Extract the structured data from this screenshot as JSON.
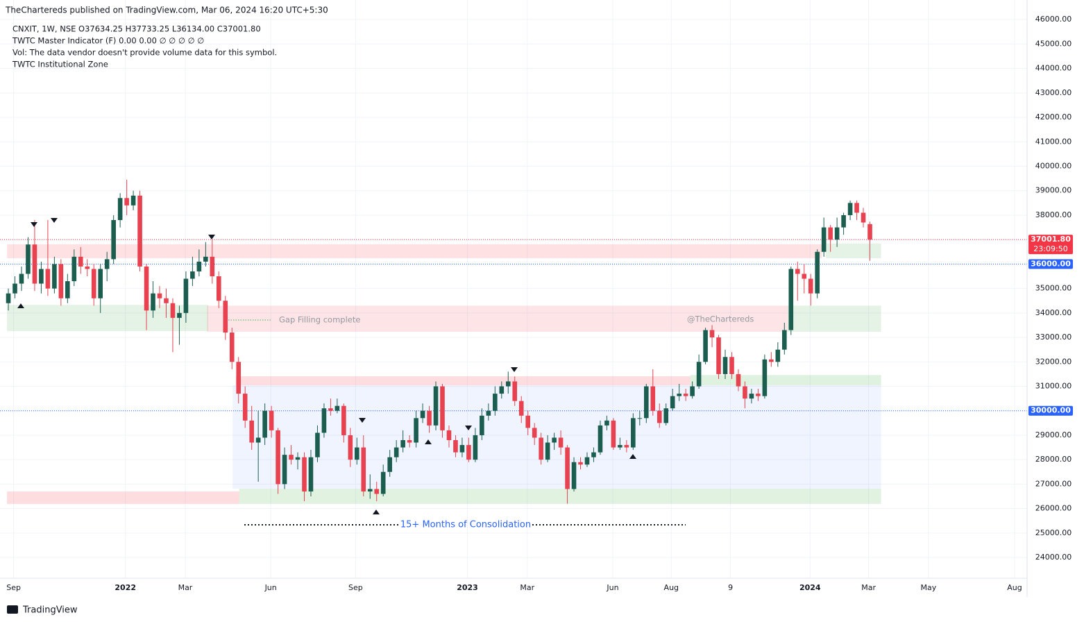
{
  "header": {
    "publisher": "TheChartereds published on TradingView.com, Mar 06, 2024 16:20 UTC+5:30"
  },
  "legend": [
    "CNXIT, 1W, NSE  O37634.25  H37733.25  L36134.00  C37001.80",
    "TWTC Master Indicator (F)  0.00  0.00  ∅  ∅  ∅  ∅  ∅",
    "Vol: The data vendor doesn't provide volume data for this symbol.",
    "TWTC Institutional Zone"
  ],
  "annotations": {
    "gap": "Gap Filling complete",
    "watermark": "@TheChartereds",
    "consolidation": "15+ Months of Consolidation"
  },
  "footer": "TradingView",
  "chart_data": {
    "type": "candlestick",
    "up_color": "#1b5e4f",
    "down_color": "#e8414f",
    "ylim": [
      23150,
      46800
    ],
    "yticks": [
      {
        "value": 24000,
        "label": "24000.00"
      },
      {
        "value": 25000,
        "label": "25000.00"
      },
      {
        "value": 26000,
        "label": "26000.00"
      },
      {
        "value": 27000,
        "label": "27000.00"
      },
      {
        "value": 28000,
        "label": "28000.00"
      },
      {
        "value": 29000,
        "label": "29000.00"
      },
      {
        "value": 30000,
        "label": "30000.00"
      },
      {
        "value": 31000,
        "label": "31000.00"
      },
      {
        "value": 32000,
        "label": "32000.00"
      },
      {
        "value": 33000,
        "label": "33000.00"
      },
      {
        "value": 34000,
        "label": "34000.00"
      },
      {
        "value": 35000,
        "label": "35000.00"
      },
      {
        "value": 36000,
        "label": "36000.00"
      },
      {
        "value": 37000,
        "label": "37000.00"
      },
      {
        "value": 38000,
        "label": "38000.00"
      },
      {
        "value": 39000,
        "label": "39000.00"
      },
      {
        "value": 40000,
        "label": "40000.00"
      },
      {
        "value": 41000,
        "label": "41000.00"
      },
      {
        "value": 42000,
        "label": "42000.00"
      },
      {
        "value": 43000,
        "label": "43000.00"
      },
      {
        "value": 44000,
        "label": "44000.00"
      },
      {
        "value": 45000,
        "label": "45000.00"
      },
      {
        "value": 46000,
        "label": "46000.00"
      }
    ],
    "xlim": [
      -1.27,
      154.9
    ],
    "xticks": [
      {
        "value": 0.8,
        "label": "Sep"
      },
      {
        "value": 17.8,
        "label": "2022"
      },
      {
        "value": 26.9,
        "label": "Mar"
      },
      {
        "value": 39.9,
        "label": "Jun"
      },
      {
        "value": 52.8,
        "label": "Sep"
      },
      {
        "value": 69.8,
        "label": "2023"
      },
      {
        "value": 78.9,
        "label": "Mar"
      },
      {
        "value": 91.9,
        "label": "Jun"
      },
      {
        "value": 100.8,
        "label": "Aug"
      },
      {
        "value": 109.8,
        "label": "9"
      },
      {
        "value": 121.9,
        "label": "2024"
      },
      {
        "value": 130.8,
        "label": "Mar"
      },
      {
        "value": 139.9,
        "label": "May"
      },
      {
        "value": 153,
        "label": "Aug"
      }
    ],
    "grid": true,
    "ohlc": [
      [
        34400,
        35000,
        34100,
        34800
      ],
      [
        34800,
        35500,
        34600,
        35200
      ],
      [
        35200,
        35900,
        34900,
        35600
      ],
      [
        35600,
        37100,
        35400,
        36800
      ],
      [
        36800,
        37800,
        34900,
        35200
      ],
      [
        35200,
        36100,
        34800,
        35800
      ],
      [
        35800,
        37800,
        34700,
        35000
      ],
      [
        35000,
        36300,
        34800,
        36000
      ],
      [
        36000,
        36200,
        34300,
        34600
      ],
      [
        34600,
        35600,
        34400,
        35300
      ],
      [
        35300,
        36600,
        35100,
        36300
      ],
      [
        36300,
        36700,
        35600,
        35900
      ],
      [
        35900,
        36200,
        35500,
        35800
      ],
      [
        35800,
        36000,
        34300,
        34600
      ],
      [
        34600,
        36000,
        34000,
        35800
      ],
      [
        35800,
        36500,
        35300,
        36200
      ],
      [
        36200,
        38000,
        36000,
        37800
      ],
      [
        37800,
        38900,
        37500,
        38700
      ],
      [
        38700,
        39450,
        38000,
        38400
      ],
      [
        38400,
        39000,
        38200,
        38800
      ],
      [
        38800,
        39000,
        35700,
        35900
      ],
      [
        35900,
        36000,
        33300,
        34100
      ],
      [
        34100,
        35300,
        33800,
        34800
      ],
      [
        34800,
        35100,
        34200,
        34600
      ],
      [
        34600,
        35000,
        33800,
        34400
      ],
      [
        34400,
        34600,
        32400,
        33800
      ],
      [
        33800,
        34300,
        32700,
        34000
      ],
      [
        34000,
        35700,
        33600,
        35400
      ],
      [
        35400,
        36300,
        35100,
        35700
      ],
      [
        35700,
        36600,
        35500,
        36100
      ],
      [
        36100,
        36900,
        35900,
        36300
      ],
      [
        36300,
        37000,
        35200,
        35500
      ],
      [
        35500,
        35700,
        34200,
        34500
      ],
      [
        34500,
        34700,
        32900,
        33200
      ],
      [
        33200,
        33400,
        31700,
        32000
      ],
      [
        32000,
        32200,
        30300,
        30700
      ],
      [
        30700,
        31000,
        29300,
        29600
      ],
      [
        29600,
        30200,
        28400,
        28700
      ],
      [
        28700,
        30000,
        27100,
        28900
      ],
      [
        28900,
        30300,
        28600,
        30000
      ],
      [
        30000,
        30200,
        28900,
        29200
      ],
      [
        29200,
        29300,
        26600,
        27000
      ],
      [
        27000,
        28500,
        26800,
        28200
      ],
      [
        28200,
        28600,
        27800,
        28000
      ],
      [
        28000,
        28300,
        27600,
        28100
      ],
      [
        28100,
        28300,
        26300,
        26700
      ],
      [
        26700,
        28400,
        26500,
        28100
      ],
      [
        28100,
        29400,
        27900,
        29100
      ],
      [
        29100,
        30300,
        28900,
        30100
      ],
      [
        30100,
        30500,
        29800,
        30000
      ],
      [
        30000,
        30500,
        29900,
        30200
      ],
      [
        30200,
        30300,
        28700,
        29000
      ],
      [
        29000,
        29300,
        27700,
        28000
      ],
      [
        28000,
        28900,
        27800,
        28500
      ],
      [
        28500,
        29000,
        26500,
        26700
      ],
      [
        26700,
        27400,
        26400,
        26800
      ],
      [
        26800,
        27100,
        26300,
        26600
      ],
      [
        26600,
        27800,
        26500,
        27500
      ],
      [
        27500,
        28400,
        27300,
        28100
      ],
      [
        28100,
        28800,
        27900,
        28500
      ],
      [
        28500,
        29200,
        28300,
        28800
      ],
      [
        28800,
        29000,
        28500,
        28700
      ],
      [
        28700,
        30000,
        28500,
        29700
      ],
      [
        29700,
        30300,
        29500,
        30000
      ],
      [
        30000,
        30200,
        29100,
        29400
      ],
      [
        29400,
        31200,
        29200,
        31000
      ],
      [
        31000,
        31100,
        28900,
        29200
      ],
      [
        29200,
        29400,
        28500,
        28800
      ],
      [
        28800,
        29000,
        28100,
        28300
      ],
      [
        28300,
        28900,
        28100,
        28600
      ],
      [
        28600,
        28900,
        27900,
        28000
      ],
      [
        28000,
        29300,
        27900,
        29000
      ],
      [
        29000,
        30100,
        28800,
        29800
      ],
      [
        29800,
        30300,
        29600,
        30000
      ],
      [
        30000,
        31000,
        29800,
        30700
      ],
      [
        30700,
        31200,
        30500,
        31000
      ],
      [
        31000,
        31600,
        30700,
        31200
      ],
      [
        31200,
        31400,
        30200,
        30400
      ],
      [
        30400,
        30600,
        29500,
        29800
      ],
      [
        29800,
        30000,
        29000,
        29300
      ],
      [
        29300,
        29500,
        28600,
        28900
      ],
      [
        28900,
        29100,
        27800,
        28000
      ],
      [
        28000,
        29000,
        27900,
        28700
      ],
      [
        28700,
        29100,
        28400,
        28900
      ],
      [
        28900,
        29200,
        28200,
        28500
      ],
      [
        28500,
        28600,
        26200,
        26800
      ],
      [
        26800,
        28100,
        26700,
        27900
      ],
      [
        27900,
        28100,
        27600,
        27800
      ],
      [
        27800,
        28300,
        27700,
        28100
      ],
      [
        28100,
        28500,
        27900,
        28300
      ],
      [
        28300,
        29600,
        28200,
        29400
      ],
      [
        29400,
        29800,
        29200,
        29600
      ],
      [
        29600,
        29700,
        28400,
        28500
      ],
      [
        28500,
        28900,
        28400,
        28600
      ],
      [
        28600,
        28800,
        28300,
        28500
      ],
      [
        28500,
        29900,
        28400,
        29700
      ],
      [
        29700,
        30000,
        29400,
        29700
      ],
      [
        29700,
        31100,
        29500,
        31000
      ],
      [
        31000,
        31700,
        29800,
        30000
      ],
      [
        30000,
        30300,
        29300,
        29500
      ],
      [
        29500,
        30300,
        29400,
        30100
      ],
      [
        30100,
        30900,
        30000,
        30600
      ],
      [
        30600,
        31100,
        30400,
        30700
      ],
      [
        30700,
        30900,
        30400,
        30600
      ],
      [
        30600,
        31200,
        30500,
        31000
      ],
      [
        31000,
        32300,
        30900,
        32000
      ],
      [
        32000,
        33400,
        31900,
        33300
      ],
      [
        33300,
        33500,
        32600,
        33000
      ],
      [
        33000,
        33100,
        31300,
        31500
      ],
      [
        31500,
        32500,
        31300,
        32200
      ],
      [
        32200,
        32400,
        31300,
        31500
      ],
      [
        31500,
        31700,
        30800,
        31000
      ],
      [
        31000,
        31200,
        30100,
        30500
      ],
      [
        30500,
        30900,
        30300,
        30700
      ],
      [
        30700,
        30900,
        30400,
        30600
      ],
      [
        30600,
        32300,
        30500,
        32100
      ],
      [
        32100,
        32400,
        31800,
        32000
      ],
      [
        32000,
        32800,
        31800,
        32500
      ],
      [
        32500,
        33600,
        32300,
        33300
      ],
      [
        33300,
        35900,
        33100,
        35800
      ],
      [
        35800,
        36100,
        34500,
        35600
      ],
      [
        35600,
        36000,
        34800,
        35400
      ],
      [
        35400,
        35600,
        34300,
        34800
      ],
      [
        34800,
        36600,
        34600,
        36500
      ],
      [
        36500,
        37900,
        36300,
        37500
      ],
      [
        37500,
        37600,
        36500,
        37000
      ],
      [
        37000,
        37900,
        36700,
        37500
      ],
      [
        37500,
        38100,
        37200,
        38000
      ],
      [
        38000,
        38600,
        37800,
        38500
      ],
      [
        38500,
        38600,
        37800,
        38100
      ],
      [
        38100,
        38300,
        37500,
        37700
      ],
      [
        37634.25,
        37733.25,
        36134,
        37001.8
      ]
    ],
    "zones": [
      {
        "x": [
          34.1,
          132.7
        ],
        "range": [
          26810,
          31040
        ],
        "color": "rgba(41,98,255,0.07)"
      },
      {
        "x": [
          -0.2,
          123.7
        ],
        "range": [
          36240,
          36810
        ],
        "color": "rgba(242,54,69,0.15)"
      },
      {
        "x": [
          124.3,
          132.7
        ],
        "range": [
          36240,
          36840
        ],
        "color": "rgba(76,175,80,0.15)"
      },
      {
        "x": [
          -0.2,
          30.4
        ],
        "range": [
          33260,
          34330
        ],
        "color": "rgba(76,175,80,0.15)"
      },
      {
        "x": [
          30.2,
          118.5
        ],
        "range": [
          33230,
          34300
        ],
        "color": "rgba(242,54,69,0.13)"
      },
      {
        "x": [
          118.5,
          132.7
        ],
        "range": [
          33230,
          34300
        ],
        "color": "rgba(76,175,80,0.15)"
      },
      {
        "x": [
          34.6,
          103.7
        ],
        "range": [
          31040,
          31410
        ],
        "color": "rgba(242,54,69,0.17)"
      },
      {
        "x": [
          103.7,
          132.7
        ],
        "range": [
          31040,
          31460
        ],
        "color": "rgba(76,175,80,0.18)"
      },
      {
        "x": [
          -0.2,
          35.1
        ],
        "range": [
          26190,
          26700
        ],
        "color": "rgba(242,54,69,0.17)"
      },
      {
        "x": [
          35.1,
          132.7
        ],
        "range": [
          26190,
          26810
        ],
        "color": "rgba(76,175,80,0.17)"
      }
    ],
    "price_lines": [
      {
        "value": 37001.8,
        "label": "37001.80",
        "countdown": "23:09:50",
        "color": "#f23645"
      },
      {
        "value": 36000,
        "label": "36000.00",
        "color": "#2962ff"
      },
      {
        "value": 30000,
        "label": "30000.00",
        "color": "#2962ff"
      }
    ]
  }
}
